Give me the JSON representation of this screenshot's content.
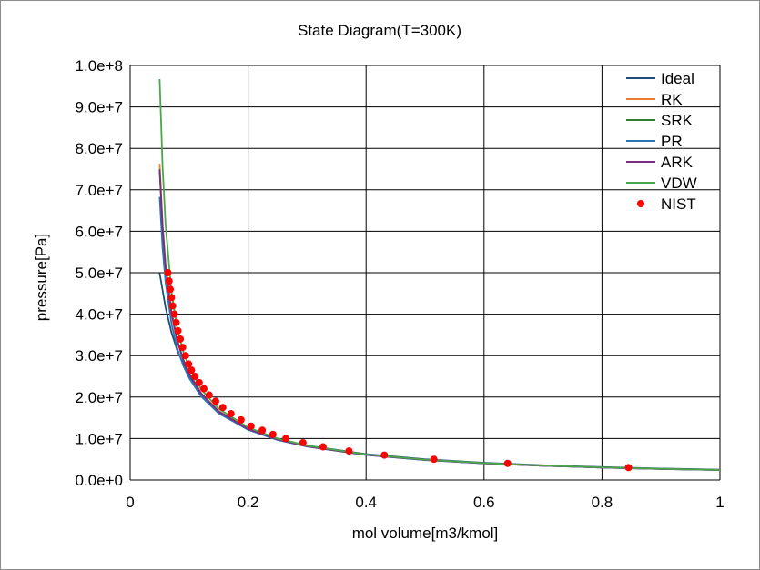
{
  "chart_data": {
    "type": "line",
    "title": "State Diagram(T=300K)",
    "xlabel": "mol volume[m3/kmol]",
    "ylabel": "pressure[Pa]",
    "xlim": [
      0,
      1
    ],
    "ylim": [
      0,
      100000000
    ],
    "x_ticks": [
      0,
      0.2,
      0.4,
      0.6,
      0.8,
      1
    ],
    "x_tick_labels": [
      "0",
      "0.2",
      "0.4",
      "0.6",
      "0.8",
      "1"
    ],
    "y_ticks": [
      0,
      10000000,
      20000000,
      30000000,
      40000000,
      50000000,
      60000000,
      70000000,
      80000000,
      90000000,
      100000000
    ],
    "y_tick_labels": [
      "0.0e+0",
      "1.0e+7",
      "2.0e+7",
      "3.0e+7",
      "4.0e+7",
      "5.0e+7",
      "6.0e+7",
      "7.0e+7",
      "8.0e+7",
      "9.0e+7",
      "1.0e+8"
    ],
    "grid": true,
    "legend_position": "top-right",
    "series": [
      {
        "name": "Ideal",
        "kind": "line",
        "color": "#1f4e79",
        "x": [
          0.05,
          0.06,
          0.07,
          0.08,
          0.1,
          0.12,
          0.15,
          0.2,
          0.25,
          0.3,
          0.4,
          0.5,
          0.6,
          0.7,
          0.8,
          0.9,
          1.0
        ],
        "y": [
          49900000,
          41600000,
          35600000,
          31200000,
          24900000,
          20800000,
          16600000,
          12500000,
          9980000,
          8310000,
          6240000,
          4990000,
          4160000,
          3560000,
          3120000,
          2770000,
          2490000
        ]
      },
      {
        "name": "RK",
        "kind": "line",
        "color": "#ed7d31",
        "x": [
          0.05,
          0.055,
          0.06,
          0.07,
          0.08,
          0.09,
          0.1,
          0.12,
          0.15,
          0.2,
          0.25,
          0.3,
          0.4,
          0.5,
          0.6,
          0.7,
          0.8,
          0.9,
          1.0
        ],
        "y": [
          76300000,
          62000000,
          52000000,
          40600000,
          33800000,
          29200000,
          25900000,
          21000000,
          16600000,
          12300000,
          9780000,
          8130000,
          6070000,
          4840000,
          4030000,
          3450000,
          3010000,
          2680000,
          2410000
        ]
      },
      {
        "name": "SRK",
        "kind": "line",
        "color": "#2e7d32",
        "x": [
          0.05,
          0.055,
          0.06,
          0.07,
          0.08,
          0.09,
          0.1,
          0.12,
          0.15,
          0.2,
          0.25,
          0.3,
          0.4,
          0.5,
          0.6,
          0.7,
          0.8,
          0.9,
          1.0
        ],
        "y": [
          75000000,
          61000000,
          51300000,
          40200000,
          33500000,
          29000000,
          25700000,
          20900000,
          16500000,
          12300000,
          9770000,
          8120000,
          6060000,
          4840000,
          4030000,
          3450000,
          3010000,
          2680000,
          2410000
        ]
      },
      {
        "name": "PR",
        "kind": "line",
        "color": "#2e75b6",
        "x": [
          0.05,
          0.055,
          0.06,
          0.07,
          0.08,
          0.09,
          0.1,
          0.12,
          0.15,
          0.2,
          0.25,
          0.3,
          0.4,
          0.5,
          0.6,
          0.7,
          0.8,
          0.9,
          1.0
        ],
        "y": [
          68300000,
          56000000,
          47600000,
          37700000,
          31700000,
          27600000,
          24600000,
          20200000,
          16100000,
          12100000,
          9650000,
          8040000,
          6020000,
          4810000,
          4010000,
          3430000,
          3000000,
          2670000,
          2400000
        ]
      },
      {
        "name": "ARK",
        "kind": "line",
        "color": "#7b2c83",
        "x": [
          0.05,
          0.055,
          0.06,
          0.07,
          0.08,
          0.09,
          0.1,
          0.12,
          0.15,
          0.2,
          0.25,
          0.3,
          0.4,
          0.5,
          0.6,
          0.7,
          0.8,
          0.9,
          1.0
        ],
        "y": [
          74800000,
          61000000,
          51300000,
          40200000,
          33500000,
          29000000,
          25700000,
          20900000,
          16500000,
          12300000,
          9770000,
          8120000,
          6060000,
          4840000,
          4030000,
          3450000,
          3010000,
          2680000,
          2410000
        ]
      },
      {
        "name": "VDW",
        "kind": "line",
        "color": "#4ca64c",
        "x": [
          0.05,
          0.055,
          0.06,
          0.07,
          0.08,
          0.09,
          0.1,
          0.12,
          0.15,
          0.2,
          0.25,
          0.3,
          0.4,
          0.5,
          0.6,
          0.7,
          0.8,
          0.9,
          1.0
        ],
        "y": [
          96700000,
          75700000,
          61600000,
          45300000,
          36500000,
          31000000,
          27200000,
          21900000,
          17200000,
          12700000,
          10000000,
          8300000,
          6170000,
          4910000,
          4080000,
          3490000,
          3040000,
          2700000,
          2430000
        ]
      },
      {
        "name": "NIST",
        "kind": "scatter",
        "color": "#ff0000",
        "x": [
          0.064,
          0.066,
          0.068,
          0.07,
          0.072,
          0.075,
          0.078,
          0.081,
          0.085,
          0.089,
          0.094,
          0.099,
          0.104,
          0.11,
          0.117,
          0.125,
          0.134,
          0.145,
          0.157,
          0.171,
          0.188,
          0.205,
          0.224,
          0.242,
          0.264,
          0.293,
          0.327,
          0.371,
          0.431,
          0.515,
          0.64,
          0.845
        ],
        "y": [
          50000000,
          48000000,
          46000000,
          44000000,
          42000000,
          40000000,
          38000000,
          36000000,
          34000000,
          32000000,
          30000000,
          28000000,
          26500000,
          25000000,
          23500000,
          22000000,
          20500000,
          19000000,
          17500000,
          16000000,
          14500000,
          13000000,
          12000000,
          11000000,
          10000000,
          9000000,
          8000000,
          7000000,
          6000000,
          5000000,
          4000000,
          3000000
        ]
      }
    ]
  }
}
